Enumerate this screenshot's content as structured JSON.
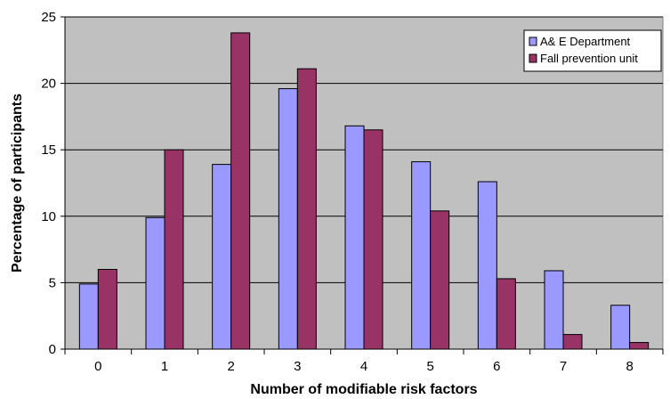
{
  "chart_data": {
    "type": "bar",
    "categories": [
      "0",
      "1",
      "2",
      "3",
      "4",
      "5",
      "6",
      "7",
      "8"
    ],
    "series": [
      {
        "name": "A& E Department",
        "color": "#9999ff",
        "values": [
          4.9,
          9.9,
          13.9,
          19.6,
          16.8,
          14.1,
          12.6,
          5.9,
          3.3
        ]
      },
      {
        "name": "Fall prevention unit",
        "color": "#993366",
        "values": [
          6.0,
          15.0,
          23.8,
          21.1,
          16.5,
          10.4,
          5.3,
          1.1,
          0.5
        ]
      }
    ],
    "xlabel": "Number of modifiable risk factors",
    "ylabel": "Percentage of participants",
    "ylim": [
      0,
      25
    ],
    "yticks": [
      0,
      5,
      10,
      15,
      20,
      25
    ],
    "grid": true,
    "plot_background": "#c0c0c0",
    "legend_position": "top-right"
  }
}
